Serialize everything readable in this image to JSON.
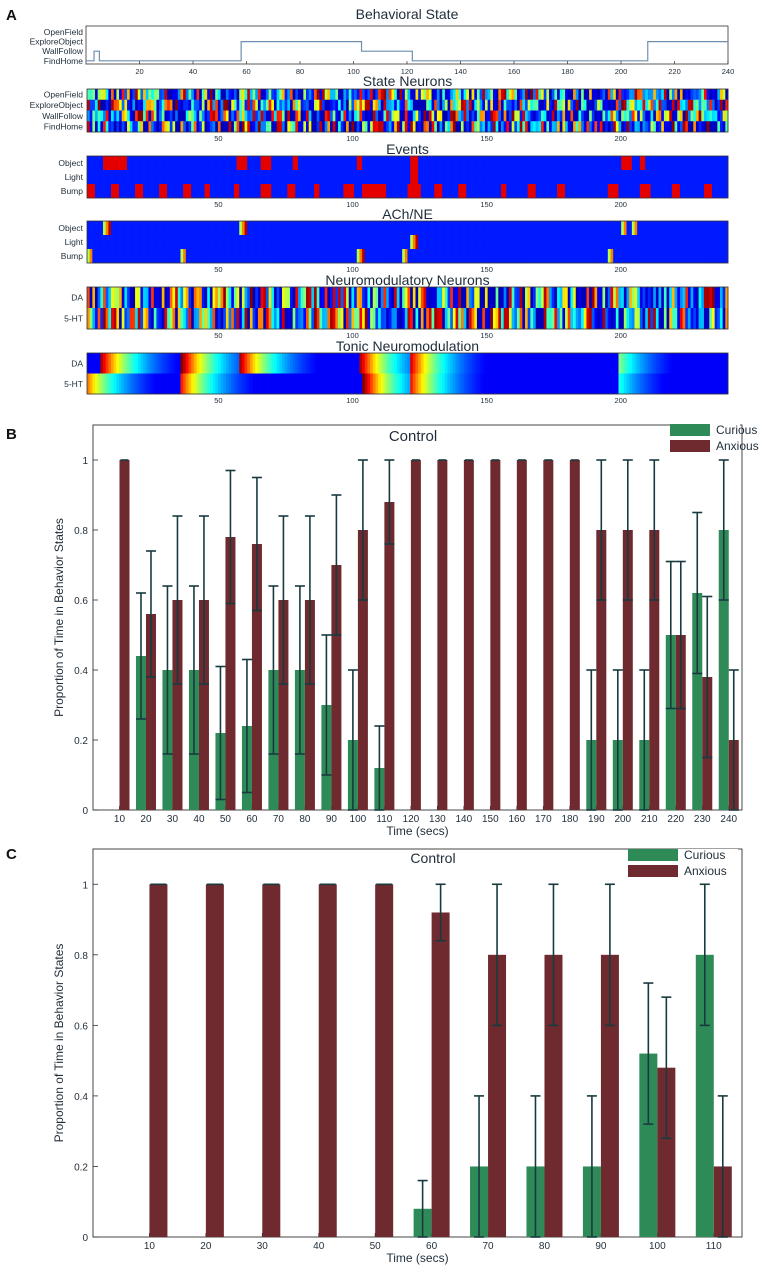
{
  "panel_letters": [
    "A",
    "B",
    "C"
  ],
  "colors": {
    "curious": "#2e8b57",
    "anxious": "#6e2a2e",
    "errorbar": "#183a3f",
    "axis": "#333333",
    "state_line": "#6f8fb0"
  },
  "chart_data": [
    {
      "id": "behavioral_state",
      "type": "line",
      "title": "Behavioral State",
      "ylabels": [
        "OpenField",
        "ExploreObject",
        "WallFollow",
        "FindHome"
      ],
      "xticks": [
        20,
        40,
        60,
        80,
        100,
        120,
        140,
        160,
        180,
        200,
        220,
        240
      ],
      "xlim": [
        0,
        240
      ],
      "segments": [
        {
          "from": 0,
          "to": 3,
          "state": "FindHome"
        },
        {
          "from": 3,
          "to": 5,
          "state": "WallFollow"
        },
        {
          "from": 5,
          "to": 58,
          "state": "FindHome"
        },
        {
          "from": 58,
          "to": 103,
          "state": "ExploreObject"
        },
        {
          "from": 103,
          "to": 122,
          "state": "WallFollow"
        },
        {
          "from": 122,
          "to": 210,
          "state": "FindHome"
        },
        {
          "from": 210,
          "to": 240,
          "state": "ExploreObject"
        }
      ]
    },
    {
      "id": "state_neurons",
      "type": "heatmap",
      "title": "State Neurons",
      "rows": [
        "OpenField",
        "ExploreObject",
        "WallFollow",
        "FindHome"
      ],
      "xticks": [
        50,
        100,
        150,
        200
      ],
      "xlim": [
        1,
        240
      ],
      "pattern": "noisy"
    },
    {
      "id": "events",
      "type": "heatmap",
      "title": "Events",
      "rows": [
        "Object",
        "Light",
        "Bump"
      ],
      "xticks": [
        50,
        100,
        150,
        200
      ],
      "xlim": [
        1,
        240
      ],
      "pattern": "sparse",
      "events": {
        "Object": [
          [
            7,
            15
          ],
          [
            57,
            60
          ],
          [
            66,
            69
          ],
          [
            78,
            79
          ],
          [
            102,
            103
          ],
          [
            122,
            124
          ],
          [
            201,
            204
          ],
          [
            208,
            209
          ]
        ],
        "Light": [
          [
            122,
            124
          ]
        ],
        "Bump": [
          [
            1,
            3
          ],
          [
            10,
            12
          ],
          [
            19,
            21
          ],
          [
            28,
            30
          ],
          [
            37,
            39
          ],
          [
            45,
            46
          ],
          [
            56,
            57
          ],
          [
            66,
            69
          ],
          [
            76,
            78
          ],
          [
            86,
            87
          ],
          [
            97,
            100
          ],
          [
            104,
            112
          ],
          [
            121,
            125
          ],
          [
            131,
            133
          ],
          [
            140,
            142
          ],
          [
            156,
            157
          ],
          [
            166,
            168
          ],
          [
            177,
            179
          ],
          [
            196,
            199
          ],
          [
            208,
            211
          ],
          [
            220,
            222
          ],
          [
            232,
            234
          ]
        ]
      }
    },
    {
      "id": "ach_ne",
      "type": "heatmap",
      "title": "ACh/NE",
      "rows": [
        "Object",
        "Light",
        "Bump"
      ],
      "xticks": [
        50,
        100,
        150,
        200
      ],
      "xlim": [
        1,
        240
      ],
      "pattern": "spikes",
      "events": {
        "Object": [
          [
            7,
            9
          ],
          [
            58,
            60
          ],
          [
            201,
            202
          ],
          [
            205,
            206
          ]
        ],
        "Light": [
          [
            122,
            124
          ]
        ],
        "Bump": [
          [
            1,
            2
          ],
          [
            36,
            37
          ],
          [
            102,
            104
          ],
          [
            119,
            120
          ],
          [
            196,
            197
          ]
        ]
      }
    },
    {
      "id": "neuromodulatory_neurons",
      "type": "heatmap",
      "title": "Neuromodulatory Neurons",
      "rows": [
        "DA",
        "5-HT"
      ],
      "xticks": [
        50,
        100,
        150,
        200
      ],
      "xlim": [
        1,
        240
      ],
      "pattern": "noisy"
    },
    {
      "id": "tonic_neuromodulation",
      "type": "heatmap",
      "title": "Tonic Neuromodulation",
      "rows": [
        "DA",
        "5-HT"
      ],
      "xticks": [
        50,
        100,
        150,
        200
      ],
      "xlim": [
        1,
        240
      ],
      "pattern": "decay",
      "peaks": {
        "DA": [
          [
            6,
            0.95
          ],
          [
            36,
            1.0
          ],
          [
            58,
            0.95
          ],
          [
            103,
            0.95
          ],
          [
            122,
            0.9
          ],
          [
            200,
            0.5
          ]
        ],
        "5-HT": [
          [
            1,
            0.75
          ],
          [
            36,
            0.85
          ],
          [
            104,
            1.0
          ],
          [
            122,
            0.85
          ],
          [
            200,
            0.4
          ]
        ]
      }
    },
    {
      "id": "panel_b",
      "type": "bar",
      "title": "Control",
      "xlabel": "Time (secs)",
      "ylabel": "Proportion of Time in Behavior States",
      "ylim": [
        0,
        1.1
      ],
      "yticks": [
        0,
        0.2,
        0.4,
        0.6,
        0.8,
        1
      ],
      "legend_position": "top-right",
      "categories": [
        "10",
        "20",
        "30",
        "40",
        "50",
        "60",
        "70",
        "80",
        "90",
        "100",
        "110",
        "120",
        "130",
        "140",
        "150",
        "160",
        "170",
        "180",
        "190",
        "200",
        "210",
        "220",
        "230",
        "240"
      ],
      "series": [
        {
          "name": "Curious",
          "values": [
            0,
            0.44,
            0.4,
            0.4,
            0.22,
            0.24,
            0.4,
            0.4,
            0.3,
            0.2,
            0.12,
            0,
            0,
            0,
            0,
            0,
            0,
            0,
            0.2,
            0.2,
            0.2,
            0.5,
            0.62,
            0.8
          ],
          "errors": [
            0,
            0.18,
            0.24,
            0.24,
            0.19,
            0.19,
            0.24,
            0.24,
            0.2,
            0.2,
            0.12,
            0,
            0,
            0,
            0,
            0,
            0,
            0,
            0.2,
            0.2,
            0.2,
            0.21,
            0.23,
            0.2
          ]
        },
        {
          "name": "Anxious",
          "values": [
            1,
            0.56,
            0.6,
            0.6,
            0.78,
            0.76,
            0.6,
            0.6,
            0.7,
            0.8,
            0.88,
            1,
            1,
            1,
            1,
            1,
            1,
            1,
            0.8,
            0.8,
            0.8,
            0.5,
            0.38,
            0.2
          ],
          "errors": [
            0,
            0.18,
            0.24,
            0.24,
            0.19,
            0.19,
            0.24,
            0.24,
            0.2,
            0.2,
            0.12,
            0,
            0,
            0,
            0,
            0,
            0,
            0,
            0.2,
            0.2,
            0.2,
            0.21,
            0.23,
            0.2
          ]
        }
      ]
    },
    {
      "id": "panel_c",
      "type": "bar",
      "title": "Control",
      "xlabel": "Time (secs)",
      "ylabel": "Proportion of Time in Behavior States",
      "ylim": [
        0,
        1.1
      ],
      "yticks": [
        0,
        0.2,
        0.4,
        0.6,
        0.8,
        1
      ],
      "legend_position": "top-right",
      "categories": [
        "10",
        "20",
        "30",
        "40",
        "50",
        "60",
        "70",
        "80",
        "90",
        "100",
        "110"
      ],
      "series": [
        {
          "name": "Curious",
          "values": [
            0,
            0,
            0,
            0,
            0,
            0.08,
            0.2,
            0.2,
            0.2,
            0.52,
            0.8
          ],
          "errors": [
            0,
            0,
            0,
            0,
            0,
            0.08,
            0.2,
            0.2,
            0.2,
            0.2,
            0.2
          ]
        },
        {
          "name": "Anxious",
          "values": [
            1,
            1,
            1,
            1,
            1,
            0.92,
            0.8,
            0.8,
            0.8,
            0.48,
            0.2
          ],
          "errors": [
            0,
            0,
            0,
            0,
            0,
            0.08,
            0.2,
            0.2,
            0.2,
            0.2,
            0.2
          ]
        }
      ]
    }
  ]
}
